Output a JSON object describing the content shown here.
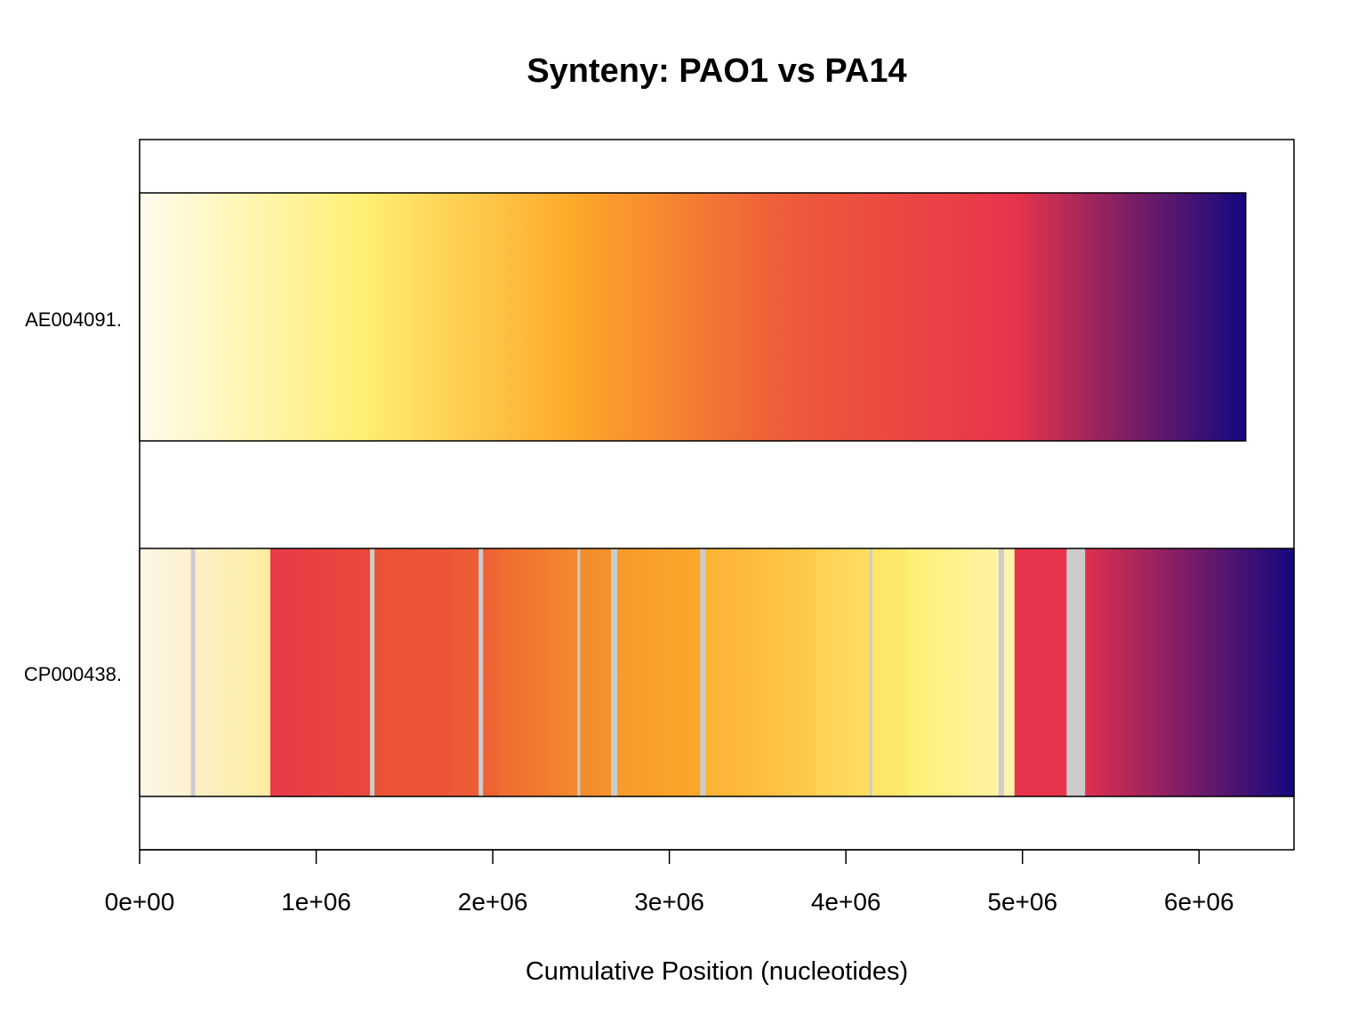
{
  "chart_data": {
    "type": "synteny",
    "title": "Synteny: PAO1 vs PA14",
    "xlabel": "Cumulative Position (nucleotides)",
    "xlim": [
      0,
      6537648
    ],
    "x_ticks": [
      {
        "value": 0,
        "label": "0e+00"
      },
      {
        "value": 1000000,
        "label": "1e+06"
      },
      {
        "value": 2000000,
        "label": "2e+06"
      },
      {
        "value": 3000000,
        "label": "3e+06"
      },
      {
        "value": 4000000,
        "label": "4e+06"
      },
      {
        "value": 5000000,
        "label": "5e+06"
      },
      {
        "value": 6000000,
        "label": "6e+06"
      }
    ],
    "gap_color": "#cccccc",
    "color_scale": [
      "#fffbee",
      "#fef074",
      "#fdaa2a",
      "#ee5c39",
      "#e8344c",
      "#13087f"
    ],
    "genomes": [
      {
        "label": "AE004091.",
        "length": 6264404,
        "gradient": true
      },
      {
        "label": "CP000438.",
        "length": 6537648,
        "segments": [
          {
            "start": 0,
            "end": 290000,
            "color_from": "#fcf6e6",
            "color_to": "#fcf1d0"
          },
          {
            "start": 290000,
            "end": 315000,
            "color": "#cccccc"
          },
          {
            "start": 315000,
            "end": 740000,
            "color_from": "#fcf0c6",
            "color_to": "#fdeda0"
          },
          {
            "start": 740000,
            "end": 1305000,
            "color_from": "#e8394a",
            "color_to": "#ea4a3c"
          },
          {
            "start": 1305000,
            "end": 1330000,
            "color": "#cccccc"
          },
          {
            "start": 1330000,
            "end": 1760000,
            "color_from": "#eb5337",
            "color_to": "#ec5636"
          },
          {
            "start": 1760000,
            "end": 1920000,
            "color_from": "#ec5936",
            "color_to": "#ed5c34"
          },
          {
            "start": 1920000,
            "end": 1945000,
            "color": "#cccccc"
          },
          {
            "start": 1945000,
            "end": 2030000,
            "color_from": "#ed6234",
            "color_to": "#ee6433"
          },
          {
            "start": 2030000,
            "end": 2480000,
            "color_from": "#ef6b31",
            "color_to": "#f28a2f"
          },
          {
            "start": 2480000,
            "end": 2495000,
            "color": "#cccccc"
          },
          {
            "start": 2495000,
            "end": 2670000,
            "color_from": "#f28b2e",
            "color_to": "#f4932d"
          },
          {
            "start": 2670000,
            "end": 2705000,
            "color": "#cccccc"
          },
          {
            "start": 2705000,
            "end": 3175000,
            "color_from": "#f79a2b",
            "color_to": "#fca72a"
          },
          {
            "start": 3175000,
            "end": 3205000,
            "color": "#cccccc"
          },
          {
            "start": 3205000,
            "end": 3830000,
            "color_from": "#fdb233",
            "color_to": "#fecb4c"
          },
          {
            "start": 3830000,
            "end": 4135000,
            "color_from": "#fed154",
            "color_to": "#fedd60"
          },
          {
            "start": 4135000,
            "end": 4150000,
            "color": "#cccccc"
          },
          {
            "start": 4150000,
            "end": 4350000,
            "color_from": "#fee466",
            "color_to": "#feea6c"
          },
          {
            "start": 4350000,
            "end": 4865000,
            "color_from": "#fef074",
            "color_to": "#fdf3a4"
          },
          {
            "start": 4865000,
            "end": 4895000,
            "color": "#cccccc"
          },
          {
            "start": 4895000,
            "end": 4955000,
            "color_from": "#fdf2ac",
            "color_to": "#fdf2ac"
          },
          {
            "start": 4955000,
            "end": 5250000,
            "color_from": "#e8344c",
            "color_to": "#e8344c"
          },
          {
            "start": 5250000,
            "end": 5355000,
            "color": "#cccccc"
          },
          {
            "start": 5355000,
            "end": 6537648,
            "color_from": "#de3050",
            "color_to": "#13087f"
          }
        ]
      }
    ]
  }
}
